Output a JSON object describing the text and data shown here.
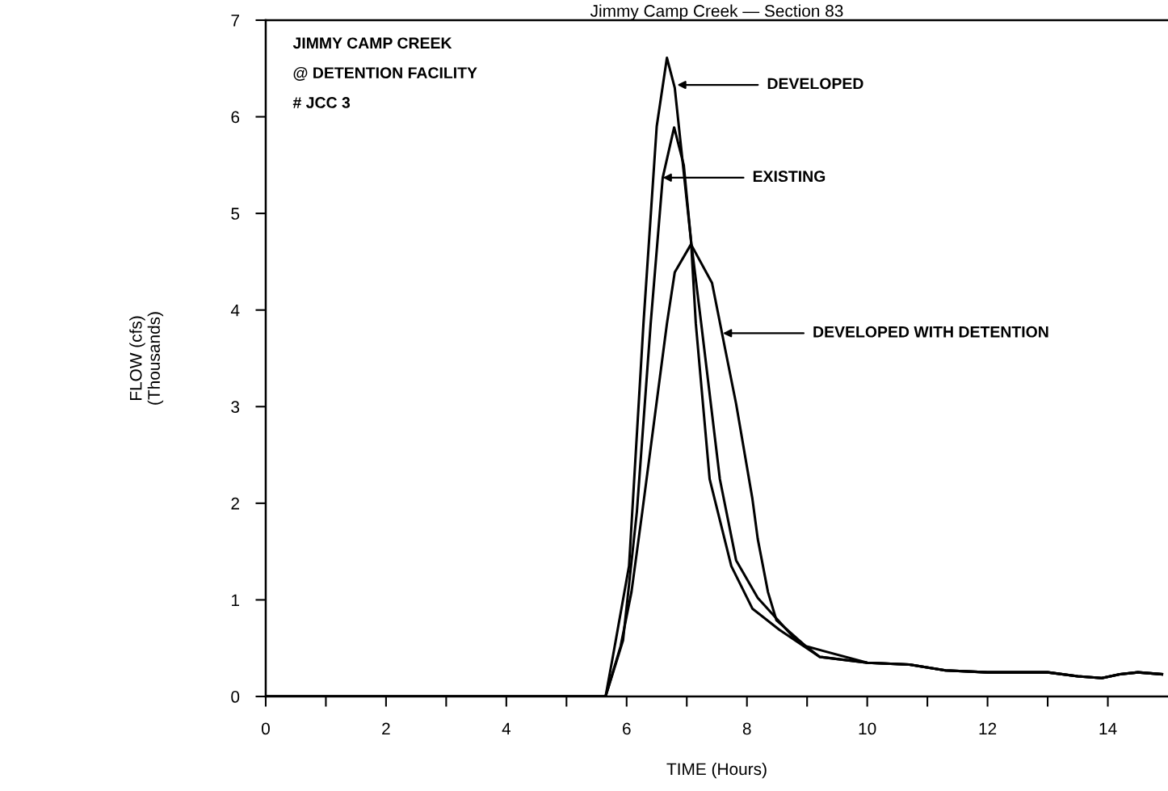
{
  "chart_data": {
    "type": "line",
    "title": "Jimmy Camp Creek — Section 83",
    "xlabel": "TIME (Hours)",
    "ylabel": "FLOW (cfs)\n(Thousands)",
    "xlim": [
      0,
      15
    ],
    "ylim": [
      0,
      7
    ],
    "xticks": [
      0,
      {
        "value": 1,
        "label": null
      },
      2,
      {
        "value": 3,
        "label": null
      },
      4,
      {
        "value": 5,
        "label": null
      },
      6,
      {
        "value": 7,
        "label": null
      },
      8,
      {
        "value": 9,
        "label": null
      },
      10,
      {
        "value": 11,
        "label": null
      },
      12,
      {
        "value": 13,
        "label": null
      },
      14
    ],
    "yticks": [
      0,
      1,
      2,
      3,
      4,
      5,
      6,
      7
    ],
    "grid": false,
    "legend": false,
    "line_style": "solid",
    "marker": "none",
    "series": [
      {
        "color": "#000000",
        "x": [
          0,
          5.65,
          5.77,
          6.04,
          6.28,
          6.5,
          6.67,
          6.8,
          7.07,
          7.15,
          7.38,
          7.74,
          8.09,
          8.54,
          9.21,
          10,
          10.7,
          11.3,
          12,
          13,
          13.5,
          13.9,
          14.2,
          14.5,
          14.9
        ],
        "values": [
          0,
          0,
          0.41,
          1.35,
          3.86,
          5.9,
          6.61,
          6.3,
          4.72,
          3.86,
          2.25,
          1.35,
          0.91,
          0.69,
          0.41,
          0.35,
          0.33,
          0.27,
          0.25,
          0.25,
          0.21,
          0.19,
          0.23,
          0.25,
          0.23
        ]
      },
      {
        "color": "#000000",
        "x": [
          0,
          5.65,
          5.94,
          6.17,
          6.4,
          6.6,
          6.79,
          6.95,
          7.07,
          7.24,
          7.55,
          7.82,
          8.18,
          8.75,
          9.21,
          10,
          10.7,
          11.3,
          12,
          13,
          13.5,
          13.9,
          14.2,
          14.5,
          14.9
        ],
        "values": [
          0,
          0,
          0.58,
          1.91,
          3.86,
          5.37,
          5.89,
          5.5,
          4.72,
          3.86,
          2.25,
          1.41,
          1.02,
          0.63,
          0.41,
          0.35,
          0.33,
          0.27,
          0.25,
          0.25,
          0.21,
          0.19,
          0.23,
          0.25,
          0.23
        ]
      },
      {
        "color": "#000000",
        "x": [
          0,
          5.65,
          5.9,
          6.08,
          6.26,
          6.67,
          6.8,
          7.07,
          7.42,
          7.64,
          7.82,
          8.09,
          8.18,
          8.35,
          8.49,
          8.98,
          10,
          10.7,
          11.3,
          12,
          13,
          13.5,
          13.9,
          14.2,
          14.5,
          14.9
        ],
        "values": [
          0,
          0,
          0.52,
          1.08,
          1.91,
          3.86,
          4.39,
          4.68,
          4.28,
          3.59,
          3.03,
          2.05,
          1.63,
          1.08,
          0.79,
          0.52,
          0.35,
          0.33,
          0.27,
          0.25,
          0.25,
          0.21,
          0.19,
          0.23,
          0.25,
          0.23
        ]
      }
    ],
    "annotations": [
      "JIMMY CAMP CREEK",
      "@ DETENTION FACILITY",
      "# JCC 3",
      {
        "text": "DEVELOPED",
        "x": 6.84,
        "y": 6.33
      },
      {
        "text": "EXISTING",
        "x": 6.6,
        "y": 5.37
      },
      {
        "text": "DEVELOPED WITH DETENTION",
        "x": 7.6,
        "y": 3.76
      }
    ]
  }
}
